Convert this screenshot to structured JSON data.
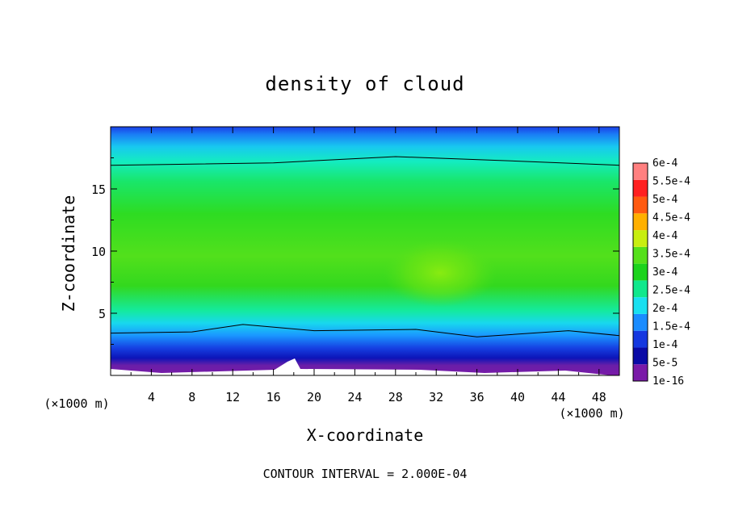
{
  "chart_data": {
    "type": "heatmap",
    "title": "density of cloud",
    "xlabel": "X-coordinate",
    "ylabel": "Z-coordinate",
    "x_unit": "(×1000 m)",
    "xlim": [
      0,
      50
    ],
    "ylim": [
      0,
      20
    ],
    "x_ticks": [
      "4",
      "8",
      "12",
      "16",
      "20",
      "24",
      "28",
      "32",
      "36",
      "40",
      "44",
      "48"
    ],
    "y_ticks": [
      "5",
      "10",
      "15"
    ],
    "colorbar_labels": [
      "1e-16",
      "5e-5",
      "1e-4",
      "1.5e-4",
      "2e-4",
      "2.5e-4",
      "3e-4",
      "3.5e-4",
      "4e-4",
      "4.5e-4",
      "5e-4",
      "5.5e-4",
      "6e-4"
    ],
    "colorbar_colors": [
      "#7a1aa8",
      "#0a0aa6",
      "#1538e0",
      "#1a8cff",
      "#19e0f0",
      "#10e88c",
      "#1cd31c",
      "#55e01a",
      "#c8ee10",
      "#ffb000",
      "#ff5a10",
      "#ff2020",
      "#ff8080"
    ],
    "contour_interval": "CONTOUR INTERVAL = 2.000E-04",
    "contour_level": 0.0002,
    "approx_structure": {
      "description_values": "Density ~1.5e-4..3.5e-4; max ~3.5e-4 near x≈31, z≈8; contour 2e-4 near z≈3.5 (bottom) and z≈17 (top)",
      "upper_contour_z": [
        [
          0,
          16.9
        ],
        [
          16,
          17.1
        ],
        [
          28,
          17.6
        ],
        [
          38,
          17.3
        ],
        [
          50,
          16.9
        ]
      ],
      "lower_contour_z": [
        [
          0,
          3.4
        ],
        [
          8,
          3.5
        ],
        [
          13,
          4.1
        ],
        [
          20,
          3.6
        ],
        [
          30,
          3.7
        ],
        [
          36,
          3.1
        ],
        [
          45,
          3.6
        ],
        [
          50,
          3.2
        ]
      ],
      "peak": {
        "x": 31,
        "z": 8,
        "value": 0.00035
      }
    }
  }
}
